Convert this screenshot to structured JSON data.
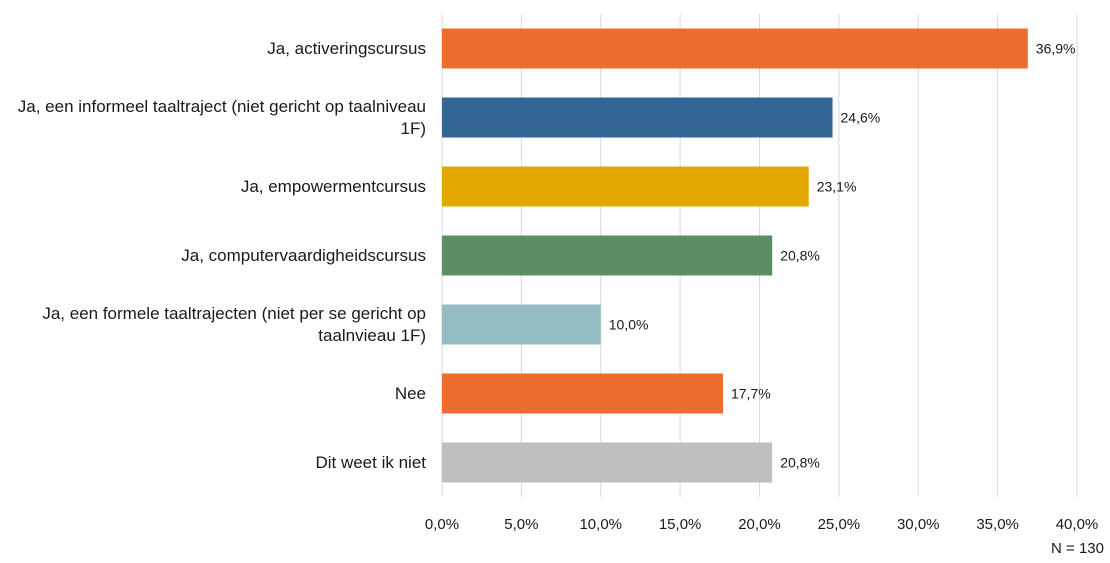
{
  "chart_data": {
    "type": "bar",
    "orientation": "horizontal",
    "categories": [
      "Ja, activeringscursus",
      "Ja, een informeel taaltraject (niet gericht op taalniveau 1F)",
      "Ja, empowermentcursus",
      "Ja, computervaardigheidscursus",
      "Ja, een formele taaltrajecten (niet per se gericht op taalnvieau 1F)",
      "Nee",
      "Dit weet ik niet"
    ],
    "values": [
      36.9,
      24.6,
      23.1,
      20.8,
      10.0,
      17.7,
      20.8
    ],
    "value_labels": [
      "36,9%",
      "24,6%",
      "23,1%",
      "20,8%",
      "10,0%",
      "17,7%",
      "20,8%"
    ],
    "colors": [
      "#ED6C2F",
      "#336694",
      "#E3A800",
      "#5C8E64",
      "#93BDC1",
      "#ED6C2F",
      "#BFBFBF"
    ],
    "xlim": [
      0,
      40
    ],
    "x_ticks": [
      0,
      5,
      10,
      15,
      20,
      25,
      30,
      35,
      40
    ],
    "x_tick_labels": [
      "0,0%",
      "5,0%",
      "10,0%",
      "15,0%",
      "20,0%",
      "25,0%",
      "30,0%",
      "35,0%",
      "40,0%"
    ],
    "grid": true,
    "title": "",
    "xlabel": "",
    "ylabel": "",
    "note": "N = 130"
  }
}
